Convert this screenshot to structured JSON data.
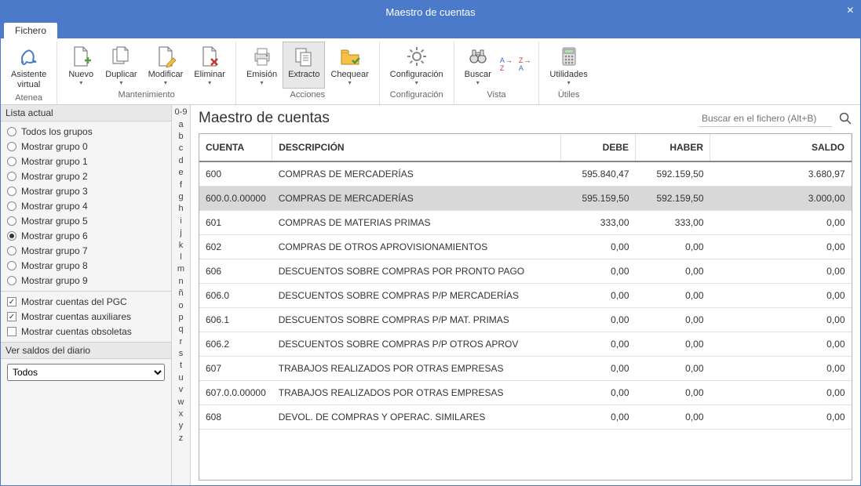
{
  "window": {
    "title": "Maestro de cuentas"
  },
  "colors": {
    "accent": "#4a7ac9",
    "border": "#d0d0d0",
    "selected_row": "#d8d8d8",
    "panel_bg": "#f5f5f5"
  },
  "ribbon": {
    "tab": "Fichero",
    "groups": [
      {
        "label": "Atenea",
        "items": [
          {
            "l1": "Asistente",
            "l2": "virtual"
          }
        ]
      },
      {
        "label": "Mantenimiento",
        "items": [
          {
            "label": "Nuevo"
          },
          {
            "label": "Duplicar"
          },
          {
            "label": "Modificar"
          },
          {
            "label": "Eliminar"
          }
        ]
      },
      {
        "label": "Acciones",
        "items": [
          {
            "label": "Emisión"
          },
          {
            "label": "Extracto",
            "selected": true
          },
          {
            "label": "Chequear"
          }
        ]
      },
      {
        "label": "Configuración",
        "items": [
          {
            "label": "Configuración"
          }
        ]
      },
      {
        "label": "Vista",
        "items": [
          {
            "label": "Buscar"
          }
        ]
      },
      {
        "label": "Útiles",
        "items": [
          {
            "label": "Utilidades"
          }
        ]
      }
    ]
  },
  "leftpanel": {
    "lista_header": "Lista actual",
    "radios": [
      {
        "label": "Todos los grupos",
        "checked": false
      },
      {
        "label": "Mostrar grupo 0",
        "checked": false
      },
      {
        "label": "Mostrar grupo 1",
        "checked": false
      },
      {
        "label": "Mostrar grupo 2",
        "checked": false
      },
      {
        "label": "Mostrar grupo 3",
        "checked": false
      },
      {
        "label": "Mostrar grupo 4",
        "checked": false
      },
      {
        "label": "Mostrar grupo 5",
        "checked": false
      },
      {
        "label": "Mostrar grupo 6",
        "checked": true
      },
      {
        "label": "Mostrar grupo 7",
        "checked": false
      },
      {
        "label": "Mostrar grupo 8",
        "checked": false
      },
      {
        "label": "Mostrar grupo 9",
        "checked": false
      }
    ],
    "checks": [
      {
        "label": "Mostrar cuentas del PGC",
        "checked": true
      },
      {
        "label": "Mostrar cuentas auxiliares",
        "checked": true
      },
      {
        "label": "Mostrar cuentas obsoletas",
        "checked": false
      }
    ],
    "diario_header": "Ver saldos del diario",
    "diario_value": "Todos"
  },
  "alpha": [
    "0-9",
    "a",
    "b",
    "c",
    "d",
    "e",
    "f",
    "g",
    "h",
    "i",
    "j",
    "k",
    "l",
    "m",
    "n",
    "ñ",
    "o",
    "p",
    "q",
    "r",
    "s",
    "t",
    "u",
    "v",
    "w",
    "x",
    "y",
    "z"
  ],
  "main": {
    "title": "Maestro de cuentas",
    "search_placeholder": "Buscar en el fichero (Alt+B)",
    "columns": [
      "CUENTA",
      "DESCRIPCIÓN",
      "DEBE",
      "HABER",
      "SALDO"
    ],
    "rows": [
      {
        "cuenta": "600",
        "desc": "COMPRAS DE MERCADERÍAS",
        "debe": "595.840,47",
        "haber": "592.159,50",
        "saldo": "3.680,97",
        "selected": false
      },
      {
        "cuenta": "600.0.0.00000",
        "desc": "COMPRAS DE MERCADERÍAS",
        "debe": "595.159,50",
        "haber": "592.159,50",
        "saldo": "3.000,00",
        "selected": true
      },
      {
        "cuenta": "601",
        "desc": "COMPRAS DE MATERIAS PRIMAS",
        "debe": "333,00",
        "haber": "333,00",
        "saldo": "0,00",
        "selected": false
      },
      {
        "cuenta": "602",
        "desc": "COMPRAS DE OTROS APROVISIONAMIENTOS",
        "debe": "0,00",
        "haber": "0,00",
        "saldo": "0,00",
        "selected": false
      },
      {
        "cuenta": "606",
        "desc": "DESCUENTOS SOBRE COMPRAS POR PRONTO PAGO",
        "debe": "0,00",
        "haber": "0,00",
        "saldo": "0,00",
        "selected": false
      },
      {
        "cuenta": "606.0",
        "desc": "DESCUENTOS SOBRE COMPRAS P/P MERCADERÍAS",
        "debe": "0,00",
        "haber": "0,00",
        "saldo": "0,00",
        "selected": false
      },
      {
        "cuenta": "606.1",
        "desc": "DESCUENTOS SOBRE COMPRAS P/P MAT. PRIMAS",
        "debe": "0,00",
        "haber": "0,00",
        "saldo": "0,00",
        "selected": false
      },
      {
        "cuenta": "606.2",
        "desc": "DESCUENTOS SOBRE COMPRAS P/P OTROS APROV",
        "debe": "0,00",
        "haber": "0,00",
        "saldo": "0,00",
        "selected": false
      },
      {
        "cuenta": "607",
        "desc": "TRABAJOS REALIZADOS POR OTRAS EMPRESAS",
        "debe": "0,00",
        "haber": "0,00",
        "saldo": "0,00",
        "selected": false
      },
      {
        "cuenta": "607.0.0.00000",
        "desc": "TRABAJOS REALIZADOS POR OTRAS EMPRESAS",
        "debe": "0,00",
        "haber": "0,00",
        "saldo": "0,00",
        "selected": false
      },
      {
        "cuenta": "608",
        "desc": "DEVOL. DE COMPRAS Y OPERAC. SIMILARES",
        "debe": "0,00",
        "haber": "0,00",
        "saldo": "0,00",
        "selected": false
      }
    ]
  }
}
